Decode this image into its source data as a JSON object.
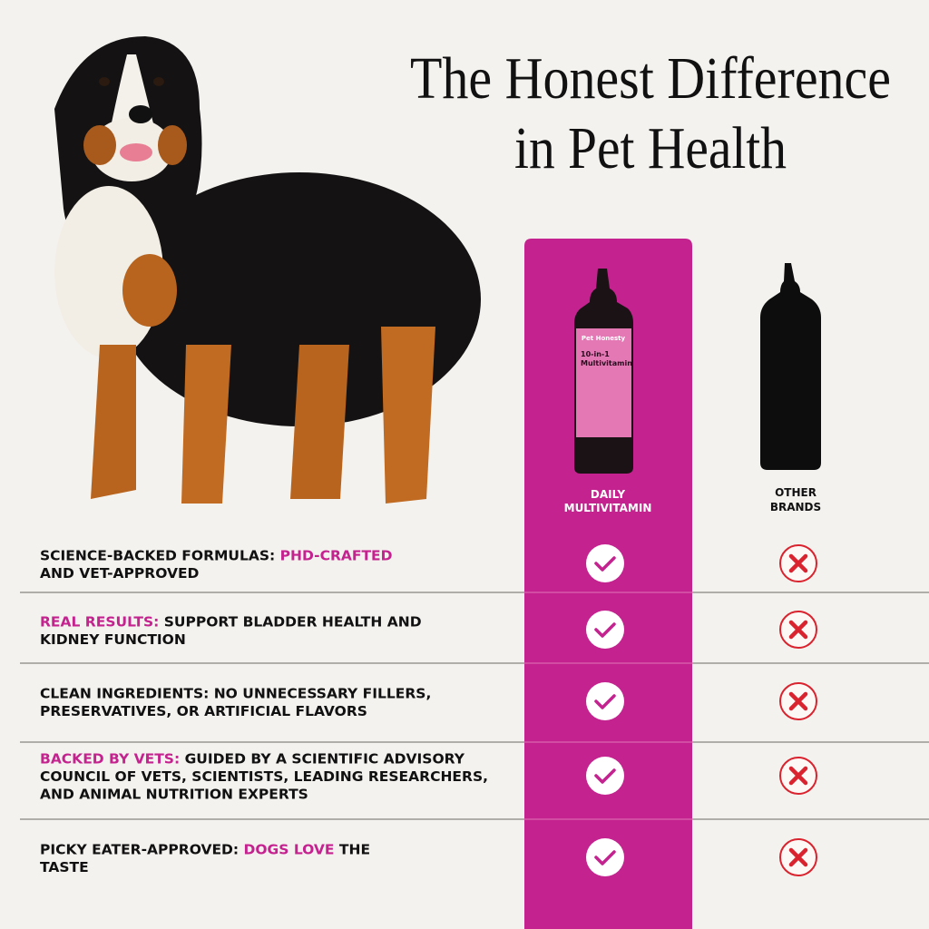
{
  "header": {
    "title_lines": [
      "The Honest Difference",
      "in Pet Health"
    ]
  },
  "columns": [
    {
      "label_lines": [
        "DAILY",
        "MULTIVITAMIN"
      ]
    },
    {
      "label_lines": [
        "OTHER",
        "BRANDS"
      ]
    }
  ],
  "product": {
    "brand": "Pet Honesty",
    "name_lines": [
      "10-in-1",
      "Multivitamin"
    ]
  },
  "rows": [
    {
      "lines": [
        [
          {
            "text": "SCIENCE-BACKED FORMULAS: ",
            "color": "#111111"
          },
          {
            "text": "PHD-CRAFTED",
            "color": "#c4228f"
          }
        ],
        [
          {
            "text": "AND VET-APPROVED",
            "color": "#111111"
          }
        ]
      ]
    },
    {
      "lines": [
        [
          {
            "text": "REAL RESULTS: ",
            "color": "#c4228f"
          },
          {
            "text": "SUPPORT BLADDER HEALTH AND",
            "color": "#111111"
          }
        ],
        [
          {
            "text": "KIDNEY FUNCTION",
            "color": "#111111"
          }
        ]
      ]
    },
    {
      "lines": [
        [
          {
            "text": "CLEAN INGREDIENTS: NO UNNECESSARY FILLERS,",
            "color": "#111111"
          }
        ],
        [
          {
            "text": "PRESERVATIVES, OR ARTIFICIAL FLAVORS",
            "color": "#111111"
          }
        ]
      ]
    },
    {
      "lines": [
        [
          {
            "text": "BACKED BY VETS: ",
            "color": "#c4228f"
          },
          {
            "text": "GUIDED BY A SCIENTIFIC ADVISORY",
            "color": "#111111"
          }
        ],
        [
          {
            "text": "COUNCIL OF VETS, SCIENTISTS, LEADING RESEARCHERS,",
            "color": "#111111"
          }
        ],
        [
          {
            "text": "AND ANIMAL NUTRITION EXPERTS",
            "color": "#111111"
          }
        ]
      ]
    },
    {
      "lines": [
        [
          {
            "text": "PICKY EATER-APPROVED: ",
            "color": "#111111"
          },
          {
            "text": "DOGS LOVE",
            "color": "#c4228f"
          },
          {
            "text": " THE",
            "color": "#111111"
          }
        ],
        [
          {
            "text": "TASTE",
            "color": "#111111"
          }
        ]
      ]
    }
  ]
}
